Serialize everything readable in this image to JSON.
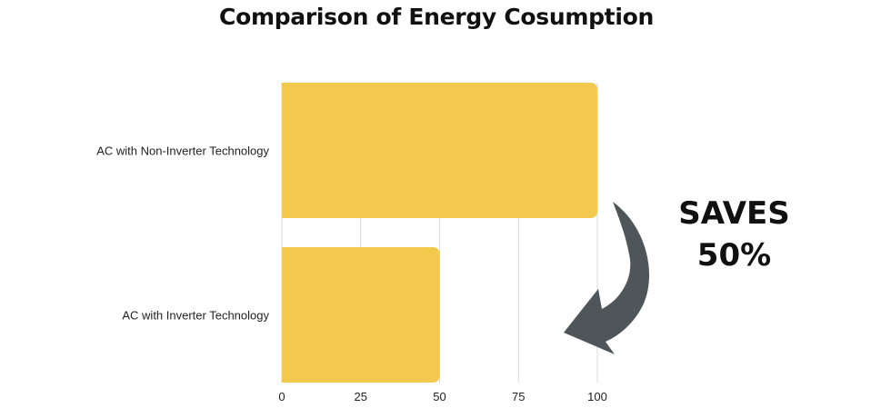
{
  "chart_data": {
    "type": "bar",
    "orientation": "horizontal",
    "title": "Comparison of Energy Cosumption",
    "categories": [
      "AC with Non-Inverter Technology",
      "AC with Inverter Technology"
    ],
    "values": [
      100,
      50
    ],
    "xlim": [
      0,
      100
    ],
    "xticks": [
      0,
      25,
      50,
      75,
      100
    ],
    "xlabel": "",
    "ylabel": "",
    "grid": "vertical",
    "bar_color": "#F2C94C",
    "annotation": {
      "line1": "SAVES",
      "line2": "50%"
    }
  },
  "colors": {
    "arrow": "#4F5659",
    "grid": "#D9D9D9",
    "text": "#222222"
  },
  "icons": {
    "arrow": "curved-down-arrow-icon"
  }
}
